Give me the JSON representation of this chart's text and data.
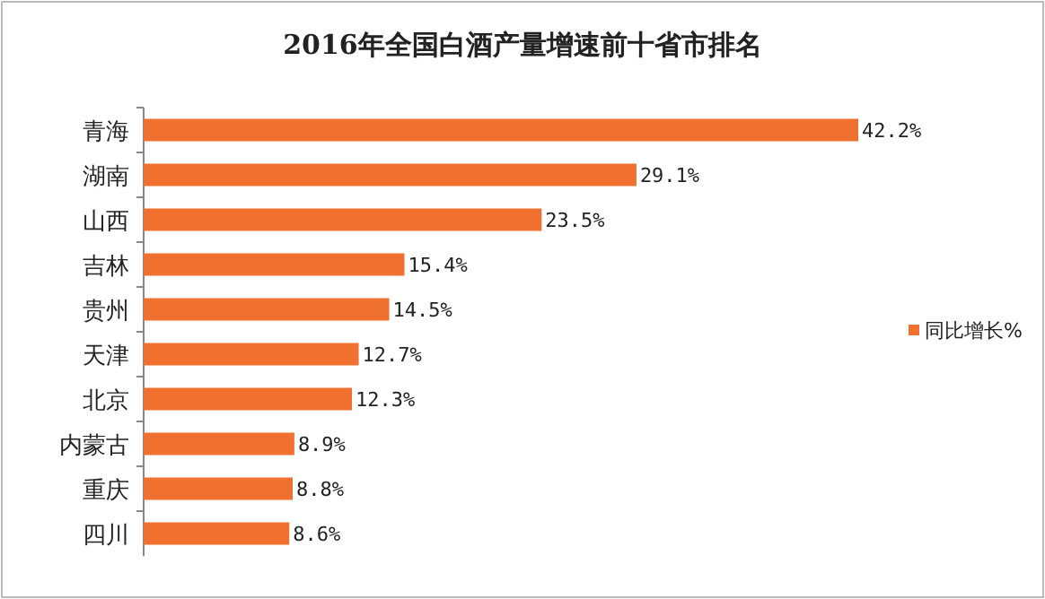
{
  "chart_data": {
    "type": "bar",
    "orientation": "horizontal",
    "title": "2016年全国白酒产量增速前十省市排名",
    "categories": [
      "青海",
      "湖南",
      "山西",
      "吉林",
      "贵州",
      "天津",
      "北京",
      "内蒙古",
      "重庆",
      "四川"
    ],
    "series": [
      {
        "name": "同比增长%",
        "color": "#f07030",
        "values": [
          42.2,
          29.1,
          23.5,
          15.4,
          14.5,
          12.7,
          12.3,
          8.9,
          8.8,
          8.6
        ],
        "value_labels": [
          "42.2%",
          "29.1%",
          "23.5%",
          "15.4%",
          "14.5%",
          "12.7%",
          "12.3%",
          "8.9%",
          "8.8%",
          "8.6%"
        ]
      }
    ],
    "legend": "right"
  }
}
